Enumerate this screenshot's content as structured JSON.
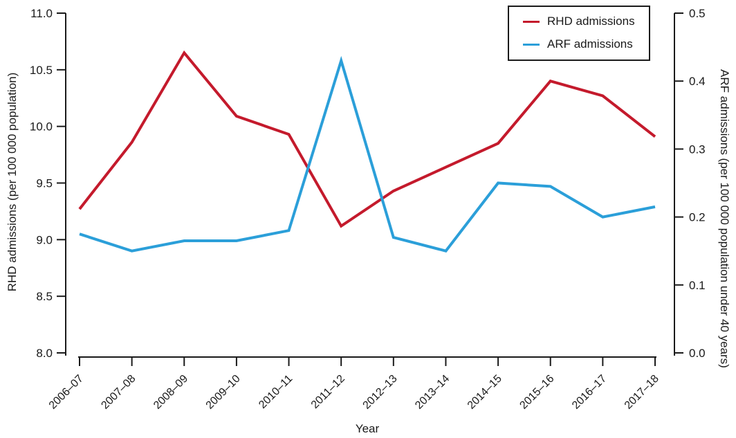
{
  "chart_data": {
    "type": "line",
    "xlabel": "Year",
    "categories": [
      "2006–07",
      "2007–08",
      "2008–09",
      "2009–10",
      "2010–11",
      "2011–12",
      "2012–13",
      "2013–14",
      "2014–15",
      "2015–16",
      "2016–17",
      "2017–18"
    ],
    "series": [
      {
        "name": "RHD admissions",
        "axis": "left",
        "color": "#c41a2c",
        "values": [
          9.27,
          9.86,
          10.65,
          10.09,
          9.93,
          9.12,
          9.43,
          9.64,
          9.85,
          10.4,
          10.27,
          9.91
        ]
      },
      {
        "name": "ARF admissions",
        "axis": "right",
        "color": "#2b9fd9",
        "values": [
          0.175,
          0.15,
          0.165,
          0.165,
          0.18,
          0.43,
          0.17,
          0.15,
          0.25,
          0.245,
          0.2,
          0.215
        ]
      }
    ],
    "axes": {
      "left": {
        "label": "RHD admissions (per 100 000 population)",
        "min": 8.0,
        "max": 11.0,
        "tick_values": [
          8.0,
          8.5,
          9.0,
          9.5,
          10.0,
          10.5,
          11.0
        ],
        "tick_labels": [
          "8.0",
          "8.5",
          "9.0",
          "9.5",
          "10.0",
          "10.5",
          "11.0"
        ]
      },
      "right": {
        "label": "ARF admissions (per 100 000 population under 40 years)",
        "min": 0.0,
        "max": 0.5,
        "tick_values": [
          0.0,
          0.1,
          0.2,
          0.3,
          0.4,
          0.5
        ],
        "tick_labels": [
          "0.0",
          "0.1",
          "0.2",
          "0.3",
          "0.4",
          "0.5"
        ]
      }
    },
    "legend_position": "top-right",
    "grid": false,
    "colors": {
      "axis": "#1a1a1a",
      "background": "#ffffff"
    }
  }
}
